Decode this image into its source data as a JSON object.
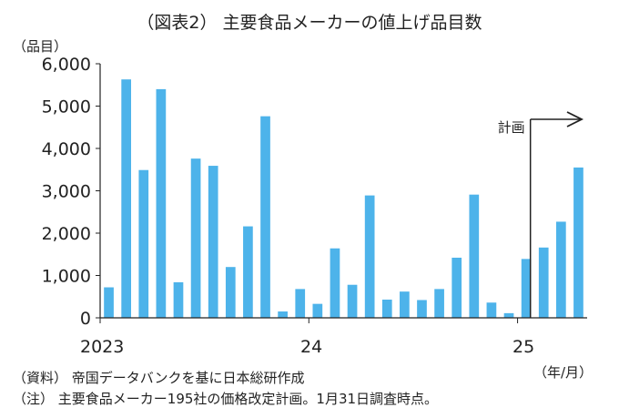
{
  "title": "（図表2） 主要食品メーカーの値上げ品目数",
  "y_unit": "（品目）",
  "x_unit": "（年/月）",
  "annotation": "計画",
  "notes": [
    "（資料） 帝国データバンクを基に日本総研作成",
    "（注） 主要食品メーカー195社の価格改定計画。1月31日調査時点。"
  ],
  "chart_data": {
    "type": "bar",
    "title": "（図表2） 主要食品メーカーの値上げ品目数",
    "ylabel": "（品目）",
    "xlabel": "（年/月）",
    "ylim": [
      0,
      6000
    ],
    "yticks": [
      0,
      1000,
      2000,
      3000,
      4000,
      5000,
      6000
    ],
    "ytick_labels": [
      "0",
      "1,000",
      "2,000",
      "3,000",
      "4,000",
      "5,000",
      "6,000"
    ],
    "x_tick_labels": [
      {
        "label": "2023",
        "index": 0
      },
      {
        "label": "24",
        "index": 12
      },
      {
        "label": "25",
        "index": 24
      }
    ],
    "categories": [
      "2023/1",
      "2023/2",
      "2023/3",
      "2023/4",
      "2023/5",
      "2023/6",
      "2023/7",
      "2023/8",
      "2023/9",
      "2023/10",
      "2023/11",
      "2023/12",
      "2024/1",
      "2024/2",
      "2024/3",
      "2024/4",
      "2024/5",
      "2024/6",
      "2024/7",
      "2024/8",
      "2024/9",
      "2024/10",
      "2024/11",
      "2024/12",
      "2025/1",
      "2025/2",
      "2025/3",
      "2025/4"
    ],
    "values": [
      720,
      5630,
      3490,
      5400,
      840,
      3760,
      3590,
      1200,
      2160,
      4760,
      150,
      680,
      330,
      1640,
      780,
      2890,
      430,
      620,
      420,
      680,
      1420,
      2910,
      360,
      110,
      1390,
      1660,
      2270,
      3550
    ],
    "bar_color": "#4db3ea",
    "plan_start_index": 25
  }
}
